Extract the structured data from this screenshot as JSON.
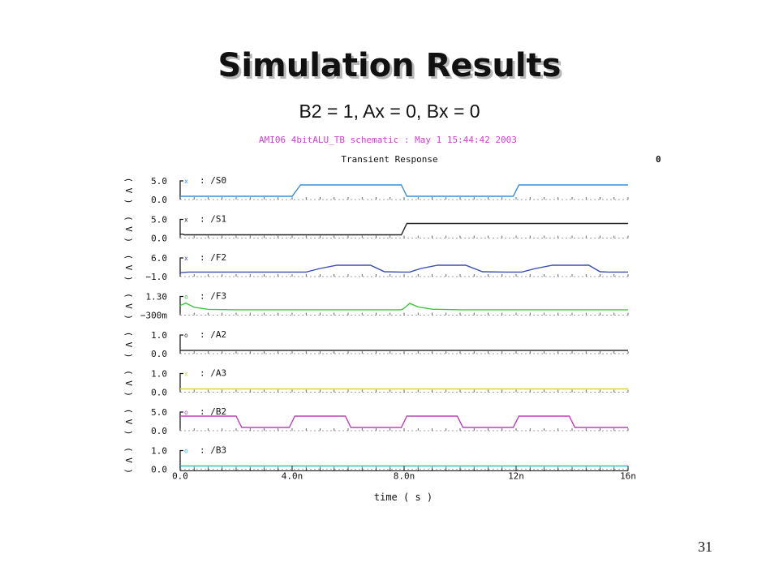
{
  "slide": {
    "title": "Simulation Results",
    "subtitle": "B2 = 1, Ax = 0, Bx = 0",
    "page_number": "31"
  },
  "chart_data": {
    "type": "line",
    "header": "AMI06 4bitALU_TB schematic : May  1 15:44:42 2003",
    "title": "Transient Response",
    "corner_marker": "0",
    "xlabel": "time ( s )",
    "xlim": [
      0,
      16
    ],
    "x_ticks": [
      {
        "value": 0,
        "label": "0.0"
      },
      {
        "value": 4,
        "label": "4.0n"
      },
      {
        "value": 8,
        "label": "8.0n"
      },
      {
        "value": 12,
        "label": "12n"
      },
      {
        "value": 16,
        "label": "16n"
      }
    ],
    "unit_label": "( V )",
    "series": [
      {
        "name": "/S0",
        "color": "#3b8fd6",
        "ylim": [
          0,
          5.0
        ],
        "ymax_label": "5.0",
        "ymin_label": "0.0",
        "marker": "x",
        "points": [
          [
            0,
            0
          ],
          [
            4.0,
            0
          ],
          [
            4.3,
            5.0
          ],
          [
            7.9,
            5.0
          ],
          [
            8.1,
            0
          ],
          [
            11.9,
            0
          ],
          [
            12.1,
            5.0
          ],
          [
            16,
            5.0
          ]
        ]
      },
      {
        "name": "/S1",
        "color": "#222222",
        "ylim": [
          0,
          5.0
        ],
        "ymax_label": "5.0",
        "ymin_label": "0.0",
        "marker": "x",
        "points": [
          [
            0,
            0.3
          ],
          [
            0.1,
            0.3
          ],
          [
            0.15,
            0
          ],
          [
            7.9,
            0
          ],
          [
            8.1,
            5.0
          ],
          [
            16,
            5.0
          ]
        ]
      },
      {
        "name": "/F2",
        "color": "#3a4fb0",
        "ylim": [
          -1.0,
          6.0
        ],
        "ymax_label": "6.0",
        "ymin_label": "−1.0",
        "marker": "x",
        "points": [
          [
            0,
            -0.6
          ],
          [
            0.3,
            -0.2
          ],
          [
            4.0,
            -0.2
          ],
          [
            4.5,
            -0.2
          ],
          [
            5.0,
            2.0
          ],
          [
            5.6,
            4.0
          ],
          [
            6.8,
            4.0
          ],
          [
            7.3,
            0
          ],
          [
            7.9,
            -0.2
          ],
          [
            8.2,
            -0.2
          ],
          [
            8.6,
            2.0
          ],
          [
            9.2,
            4.0
          ],
          [
            10.2,
            4.0
          ],
          [
            10.8,
            0
          ],
          [
            11.6,
            -0.2
          ],
          [
            12.2,
            -0.2
          ],
          [
            12.7,
            2.0
          ],
          [
            13.3,
            4.0
          ],
          [
            14.6,
            4.0
          ],
          [
            15.0,
            0
          ],
          [
            15.3,
            -0.2
          ],
          [
            16,
            -0.2
          ]
        ]
      },
      {
        "name": "/F3",
        "color": "#3ec43e",
        "ylim": [
          -0.3,
          1.3
        ],
        "ymax_label": "1.30",
        "ymin_label": "−300m",
        "marker": "o",
        "points": [
          [
            0,
            0.6
          ],
          [
            0.2,
            0.95
          ],
          [
            0.5,
            0.35
          ],
          [
            1.0,
            0.05
          ],
          [
            2.0,
            0
          ],
          [
            7.9,
            0
          ],
          [
            8.0,
            0.2
          ],
          [
            8.2,
            0.9
          ],
          [
            8.5,
            0.4
          ],
          [
            9.0,
            0.08
          ],
          [
            10,
            0
          ],
          [
            16,
            0
          ]
        ]
      },
      {
        "name": "/A2",
        "color": "#333333",
        "ylim": [
          0,
          1.0
        ],
        "ymax_label": "1.0",
        "ymin_label": "0.0",
        "marker": "o",
        "points": [
          [
            0,
            0
          ],
          [
            16,
            0
          ]
        ]
      },
      {
        "name": "/A3",
        "color": "#d6d63a",
        "ylim": [
          0,
          1.0
        ],
        "ymax_label": "1.0",
        "ymin_label": "0.0",
        "marker": "x",
        "points": [
          [
            0,
            0
          ],
          [
            16,
            0
          ]
        ]
      },
      {
        "name": "/B2",
        "color": "#c040c0",
        "ylim": [
          0,
          5.0
        ],
        "ymax_label": "5.0",
        "ymin_label": "0.0",
        "marker": "o",
        "points": [
          [
            0,
            5.0
          ],
          [
            2.0,
            5.0
          ],
          [
            2.2,
            0
          ],
          [
            3.9,
            0
          ],
          [
            4.1,
            5.0
          ],
          [
            5.9,
            5.0
          ],
          [
            6.1,
            0
          ],
          [
            7.9,
            0
          ],
          [
            8.1,
            5.0
          ],
          [
            9.9,
            5.0
          ],
          [
            10.1,
            0
          ],
          [
            11.9,
            0
          ],
          [
            12.1,
            5.0
          ],
          [
            13.9,
            5.0
          ],
          [
            14.1,
            0
          ],
          [
            16,
            0
          ]
        ]
      },
      {
        "name": "/B3",
        "color": "#2ec0c0",
        "ylim": [
          0,
          1.0
        ],
        "ymax_label": "1.0",
        "ymin_label": "0.0",
        "marker": "o",
        "points": [
          [
            0,
            0
          ],
          [
            16,
            0
          ]
        ]
      }
    ]
  }
}
